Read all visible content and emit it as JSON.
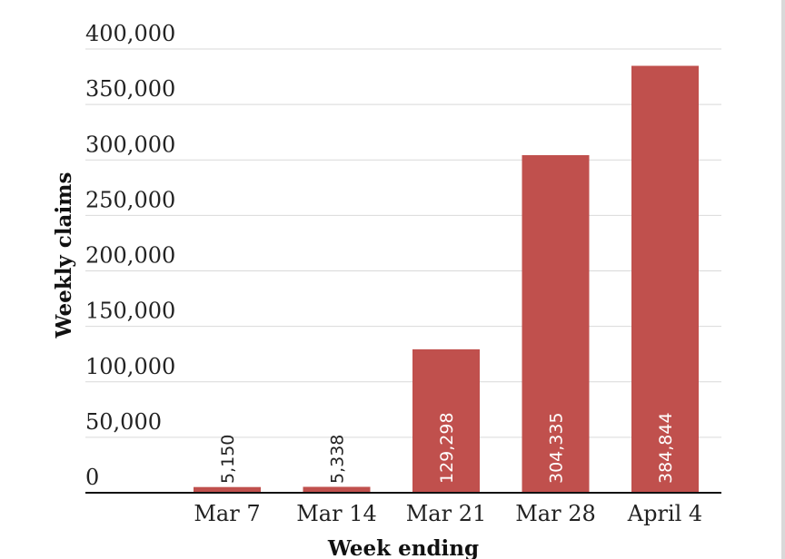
{
  "chart_data": {
    "type": "bar",
    "categories": [
      "Mar 7",
      "Mar 14",
      "Mar 21",
      "Mar 28",
      "April 4"
    ],
    "values": [
      5150,
      5338,
      129298,
      304335,
      384844
    ],
    "data_labels": [
      "5,150",
      "5,338",
      "129,298",
      "304,335",
      "384,844"
    ],
    "yticks": [
      0,
      50000,
      100000,
      150000,
      200000,
      250000,
      300000,
      350000,
      400000
    ],
    "ytick_labels": [
      "0",
      "50,000",
      "100,000",
      "150,000",
      "200,000",
      "250,000",
      "300,000",
      "350,000",
      "400,000"
    ],
    "ylim": [
      0,
      400000
    ],
    "xlabel": "Week ending",
    "ylabel": "Weekly claims",
    "title": "",
    "grid": true,
    "bar_color": "#c0504d",
    "label_inside_color": "#ffffff",
    "label_outside_color": "#222222"
  }
}
